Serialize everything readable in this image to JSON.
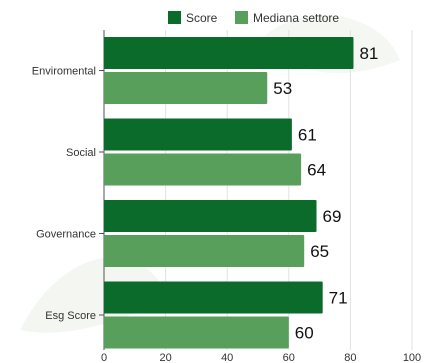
{
  "chart_data": {
    "type": "bar",
    "orientation": "horizontal",
    "categories": [
      "Enviromental",
      "Social",
      "Governance",
      "Esg Score"
    ],
    "series": [
      {
        "name": "Score",
        "values": [
          81,
          61,
          69,
          71
        ],
        "color": "#0b6b2a"
      },
      {
        "name": "Mediana settore",
        "values": [
          53,
          64,
          65,
          60
        ],
        "color": "#579f5a"
      }
    ],
    "xlim": [
      0,
      100
    ],
    "xticks": [
      0,
      20,
      40,
      60,
      80,
      100
    ],
    "grid": true,
    "legend_position": "top",
    "title": "",
    "xlabel": "",
    "ylabel": ""
  }
}
